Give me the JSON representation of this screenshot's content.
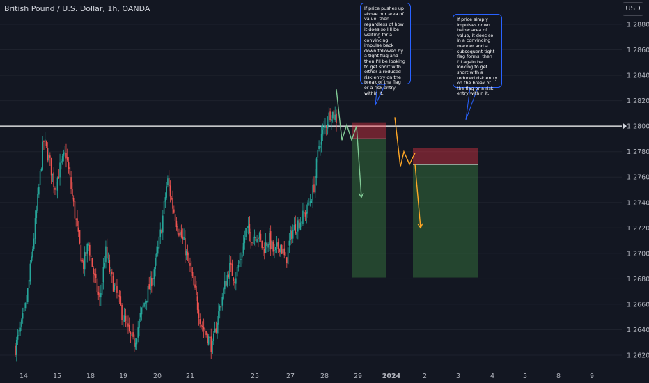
{
  "header": {
    "symbol": "British Pound / U.S. Dollar, 1h, OANDA",
    "currency": "USD"
  },
  "annotations": [
    "If price pushes up above our area of value, then regardless of how it does so I'll be waiting for a convincing impulse back down followed by a tight flag and then I'll be looking to get short with either a reduced risk entry on the break of the flag or a risk entry within it.",
    "If price simply impulses down below area of value, it does so in a convincing manner and a subsequent tight flag forms, then I'll again be looking to get short with a reduced risk entry on the break of the flag or a risk entry within it."
  ],
  "colors": {
    "background": "#131722",
    "bull": "#26a69a",
    "bear": "#ef5350",
    "level_line": "#ffffff",
    "scenario1": "#81c995",
    "scenario2": "#ffa726",
    "stop_zone": "#f23645",
    "target_zone": "#4caf50",
    "callout_border": "#2962ff"
  },
  "chart_data": {
    "type": "candlestick",
    "title": "British Pound / U.S. Dollar, 1h, OANDA",
    "ylim": [
      1.2614,
      1.2897
    ],
    "y_ticks": [
      "1.28800",
      "1.28600",
      "1.28400",
      "1.28200",
      "1.28000",
      "1.27800",
      "1.27600",
      "1.27400",
      "1.27200",
      "1.27000",
      "1.26800",
      "1.26600",
      "1.26400",
      "1.26200"
    ],
    "x_ticks": [
      "14",
      "15",
      "18",
      "19",
      "20",
      "21",
      "25",
      "27",
      "28",
      "29",
      "2024",
      "2",
      "3",
      "4",
      "5",
      "8",
      "9"
    ],
    "key_level": 1.28,
    "price_path": [
      1.2626,
      1.2641,
      1.2662,
      1.2701,
      1.2743,
      1.2789,
      1.2774,
      1.2752,
      1.2768,
      1.2779,
      1.2748,
      1.2718,
      1.2689,
      1.2708,
      1.2681,
      1.2662,
      1.2702,
      1.2681,
      1.2668,
      1.2652,
      1.2639,
      1.2628,
      1.2646,
      1.2663,
      1.2676,
      1.2694,
      1.2722,
      1.2758,
      1.2736,
      1.2719,
      1.2706,
      1.2688,
      1.2667,
      1.2645,
      1.2636,
      1.2626,
      1.2651,
      1.2671,
      1.2689,
      1.2681,
      1.2696,
      1.2719,
      1.2713,
      1.2716,
      1.2703,
      1.2712,
      1.2699,
      1.2708,
      1.2693,
      1.2716,
      1.2723,
      1.2728,
      1.2736,
      1.2752,
      1.2788,
      1.2799,
      1.2812,
      1.2806
    ],
    "scenarios": [
      {
        "path": [
          1.2829,
          1.2789,
          1.2801,
          1.2789,
          1.28
        ],
        "arrow": [
          1.28,
          1.2744
        ],
        "stop_zone": [
          1.279,
          1.2803
        ],
        "target_zone": [
          1.2681,
          1.279
        ]
      },
      {
        "path": [
          1.2807,
          1.2768,
          1.278,
          1.277,
          1.2779
        ],
        "arrow": [
          1.277,
          1.272
        ],
        "stop_zone": [
          1.277,
          1.2783
        ],
        "target_zone": [
          1.2681,
          1.277
        ]
      }
    ]
  }
}
